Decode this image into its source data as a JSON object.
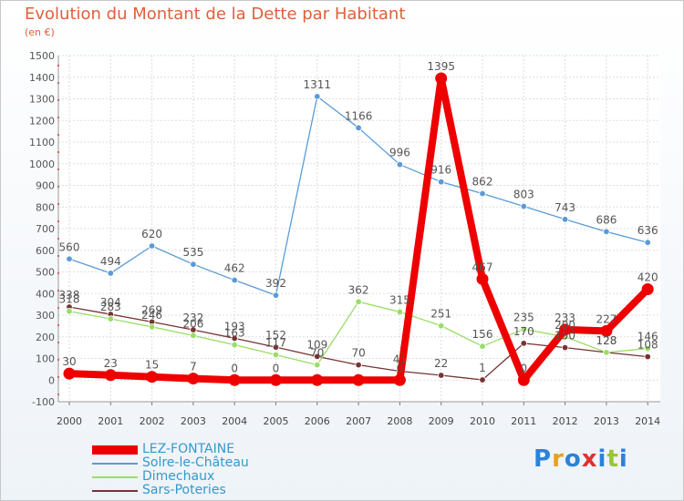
{
  "chart_data": {
    "type": "line",
    "title": "Evolution du Montant de la Dette par Habitant",
    "subtitle": "(en €)",
    "xlabel": "",
    "ylabel": "",
    "categories": [
      "2000",
      "2001",
      "2002",
      "2003",
      "2004",
      "2005",
      "2006",
      "2007",
      "2008",
      "2009",
      "2010",
      "2011",
      "2012",
      "2013",
      "2014"
    ],
    "ylim": [
      -100,
      1500
    ],
    "yticks": [
      -100,
      0,
      100,
      200,
      300,
      400,
      500,
      600,
      700,
      800,
      900,
      1000,
      1100,
      1200,
      1300,
      1400,
      1500
    ],
    "grid": true,
    "legend_position": "bottom-left",
    "series": [
      {
        "name": "LEZ-FONTAINE",
        "color": "#ee0000",
        "values": [
          30,
          23,
          15,
          7,
          0,
          0,
          0,
          0,
          0,
          1395,
          467,
          0,
          233,
          227,
          420
        ],
        "labels": [
          "30",
          "23",
          "15",
          "7",
          "0",
          "0",
          "",
          "",
          "0",
          "1395",
          "467",
          "0",
          "233",
          "227",
          "420"
        ]
      },
      {
        "name": "Solre-le-Château",
        "color": "#5b9bd5",
        "values": [
          560,
          494,
          620,
          535,
          462,
          392,
          1311,
          1166,
          996,
          916,
          862,
          803,
          743,
          686,
          636
        ],
        "labels": [
          "560",
          "494",
          "620",
          "535",
          "462",
          "392",
          "1311",
          "1166",
          "996",
          "916",
          "862",
          "803",
          "743",
          "686",
          "636"
        ]
      },
      {
        "name": "Dimechaux",
        "color": "#99dd66",
        "values": [
          318,
          283,
          246,
          206,
          163,
          117,
          70,
          362,
          315,
          251,
          156,
          235,
          200,
          128,
          146
        ],
        "labels": [
          "318",
          "283",
          "246",
          "206",
          "163",
          "117",
          "70",
          "362",
          "315",
          "251",
          "156",
          "235",
          "200",
          "128",
          "146"
        ]
      },
      {
        "name": "Sars-Poteries",
        "color": "#773333",
        "values": [
          338,
          304,
          269,
          232,
          193,
          152,
          109,
          70,
          41,
          22,
          1,
          170,
          150,
          128,
          108
        ],
        "labels": [
          "338",
          "304",
          "269",
          "232",
          "193",
          "152",
          "109",
          "70",
          "41",
          "22",
          "1",
          "170",
          "150",
          "128",
          "108"
        ]
      }
    ]
  },
  "logo": {
    "text": "Proxiti"
  }
}
